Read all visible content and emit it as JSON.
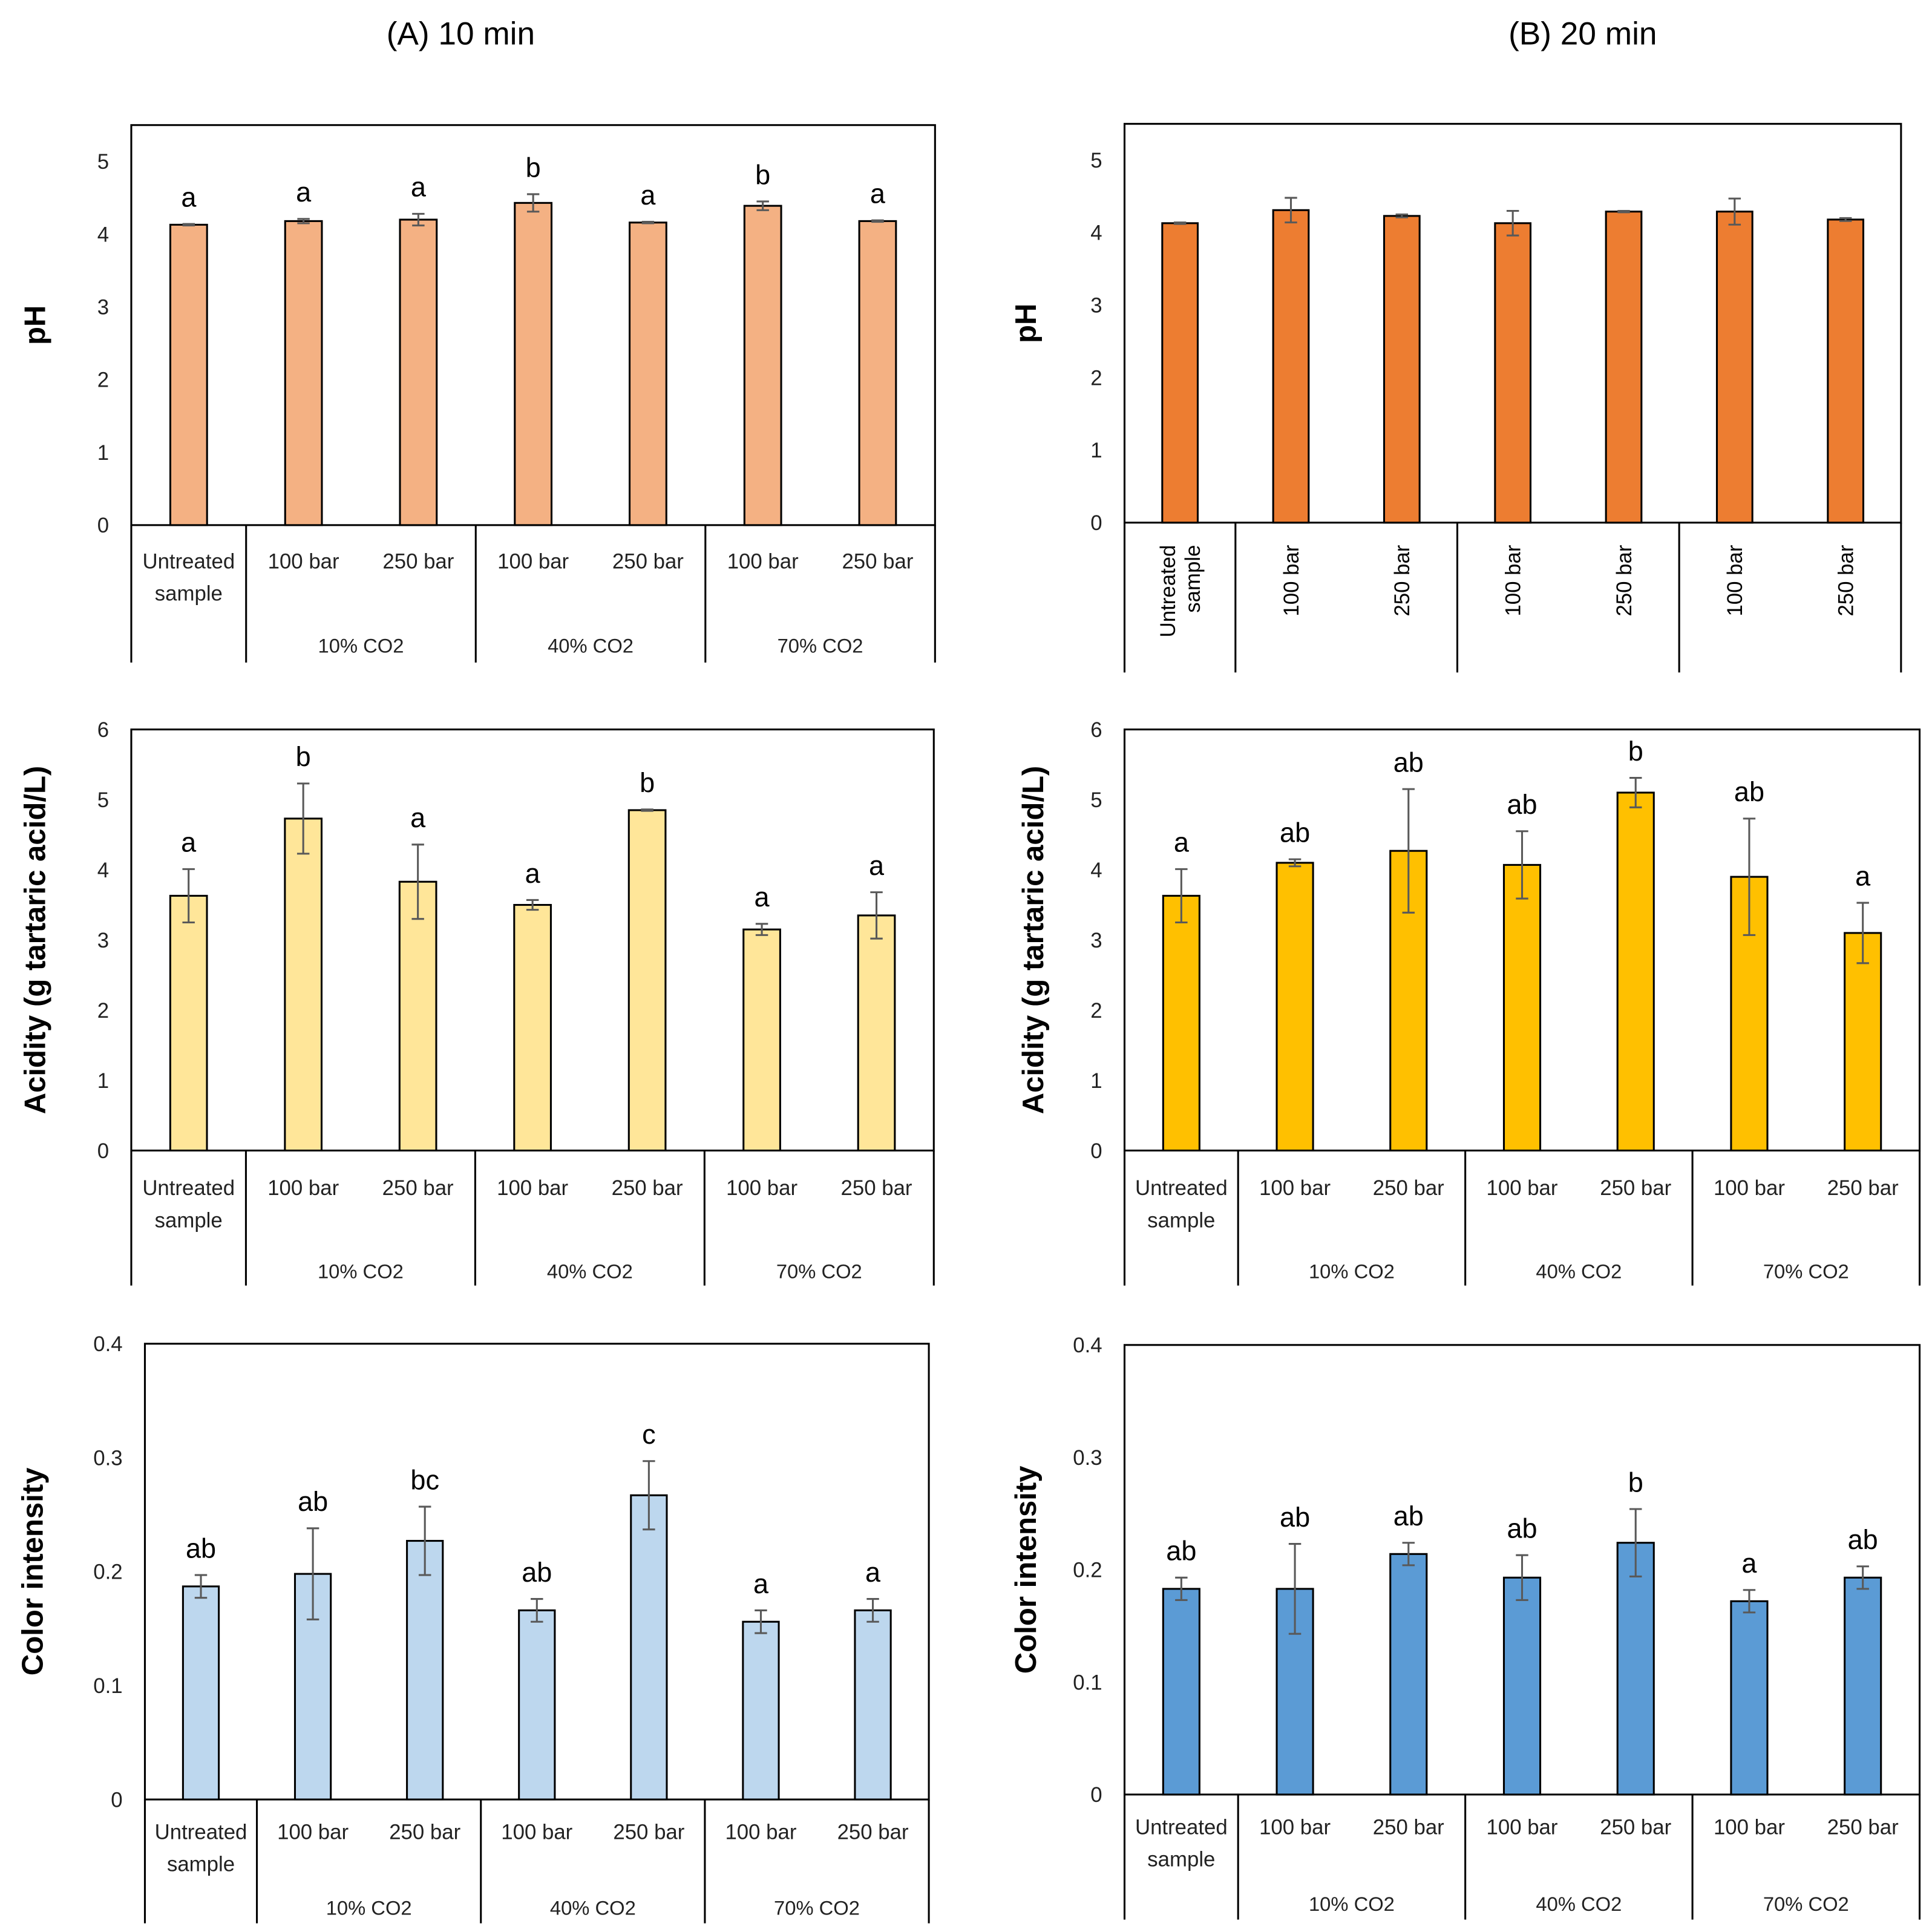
{
  "titles": [
    "(A) 10 min",
    "(B) 20 min"
  ],
  "colors": {
    "ph_a": "#F4B183",
    "ph_b": "#ED7D31",
    "acid_a": "#FFE699",
    "acid_b": "#FFC000",
    "color_a": "#BDD7EE",
    "color_b": "#5B9BD5",
    "error_bar": "#595959"
  },
  "chart_data": [
    {
      "id": "ph_a",
      "type": "bar",
      "panel": "(A) 10 min",
      "ylabel": "pH",
      "ylim": [
        0,
        5.5
      ],
      "yticks": [
        "0",
        "1",
        "2",
        "3",
        "4",
        "5"
      ],
      "ytick_values": [
        0,
        1,
        2,
        3,
        4,
        5
      ],
      "categories": [
        "Untreated sample",
        "100 bar",
        "250 bar",
        "100 bar",
        "250 bar",
        "100 bar",
        "250 bar"
      ],
      "groups": [
        "10% CO2",
        "40% CO2",
        "70% CO2"
      ],
      "values": [
        4.13,
        4.18,
        4.2,
        4.43,
        4.16,
        4.39,
        4.18
      ],
      "errors": [
        0.01,
        0.03,
        0.08,
        0.12,
        0.01,
        0.06,
        0.01
      ],
      "letters": [
        "a",
        "a",
        "a",
        "b",
        "a",
        "b",
        "a"
      ]
    },
    {
      "id": "ph_b",
      "type": "bar",
      "panel": "(B) 20 min",
      "ylabel": "pH",
      "ylim": [
        0,
        5.5
      ],
      "yticks": [
        "0",
        "1",
        "2",
        "3",
        "4",
        "5"
      ],
      "ytick_values": [
        0,
        1,
        2,
        3,
        4,
        5
      ],
      "categories": [
        "Untreated sample",
        "100 bar",
        "250 bar",
        "100 bar",
        "250 bar",
        "100 bar",
        "250 bar"
      ],
      "groups": [],
      "values": [
        4.13,
        4.31,
        4.23,
        4.13,
        4.29,
        4.29,
        4.18
      ],
      "errors": [
        0.01,
        0.17,
        0.02,
        0.17,
        0.01,
        0.18,
        0.02
      ],
      "letters": []
    },
    {
      "id": "acid_a",
      "type": "bar",
      "panel": "(A) 10 min",
      "ylabel": "Acidity (g tartaric acid/L)",
      "ylim": [
        0,
        6
      ],
      "yticks": [
        "0",
        "1",
        "2",
        "3",
        "4",
        "5",
        "6"
      ],
      "ytick_values": [
        0,
        1,
        2,
        3,
        4,
        5,
        6
      ],
      "categories": [
        "Untreated sample",
        "100 bar",
        "250 bar",
        "100 bar",
        "250 bar",
        "100 bar",
        "250 bar"
      ],
      "groups": [
        "10% CO2",
        "40% CO2",
        "70% CO2"
      ],
      "values": [
        3.63,
        4.73,
        3.83,
        3.5,
        4.85,
        3.15,
        3.35
      ],
      "errors": [
        0.38,
        0.5,
        0.53,
        0.07,
        0.01,
        0.08,
        0.33
      ],
      "letters": [
        "a",
        "b",
        "a",
        "a",
        "b",
        "a",
        "a"
      ]
    },
    {
      "id": "acid_b",
      "type": "bar",
      "panel": "(B) 20 min",
      "ylabel": "Acidity (g tartaric acid/L)",
      "ylim": [
        0,
        6
      ],
      "yticks": [
        "0",
        "1",
        "2",
        "3",
        "4",
        "5",
        "6"
      ],
      "ytick_values": [
        0,
        1,
        2,
        3,
        4,
        5,
        6
      ],
      "categories": [
        "Untreated sample",
        "100 bar",
        "250 bar",
        "100 bar",
        "250 bar",
        "100 bar",
        "250 bar"
      ],
      "groups": [
        "10% CO2",
        "40% CO2",
        "70% CO2"
      ],
      "values": [
        3.63,
        4.1,
        4.27,
        4.07,
        5.1,
        3.9,
        3.1
      ],
      "errors": [
        0.38,
        0.05,
        0.88,
        0.48,
        0.21,
        0.83,
        0.43
      ],
      "letters": [
        "a",
        "ab",
        "ab",
        "ab",
        "b",
        "ab",
        "a"
      ]
    },
    {
      "id": "color_a",
      "type": "bar",
      "panel": "(A) 10 min",
      "ylabel": "Color intensity",
      "ylim": [
        0,
        0.4
      ],
      "yticks": [
        "0",
        "0.1",
        "0.2",
        "0.3",
        "0.4"
      ],
      "ytick_values": [
        0,
        0.1,
        0.2,
        0.3,
        0.4
      ],
      "categories": [
        "Untreated sample",
        "100 bar",
        "250 bar",
        "100 bar",
        "250 bar",
        "100 bar",
        "250 bar"
      ],
      "groups": [
        "10% CO2",
        "40% CO2",
        "70% CO2"
      ],
      "values": [
        0.187,
        0.198,
        0.227,
        0.166,
        0.267,
        0.156,
        0.166
      ],
      "errors": [
        0.01,
        0.04,
        0.03,
        0.01,
        0.03,
        0.01,
        0.01
      ],
      "letters": [
        "ab",
        "ab",
        "bc",
        "ab",
        "c",
        "a",
        "a"
      ]
    },
    {
      "id": "color_b",
      "type": "bar",
      "panel": "(B) 20 min",
      "ylabel": "Color intensity",
      "ylim": [
        0,
        0.4
      ],
      "yticks": [
        "0",
        "0.1",
        "0.2",
        "0.3",
        "0.4"
      ],
      "ytick_values": [
        0,
        0.1,
        0.2,
        0.3,
        0.4
      ],
      "categories": [
        "Untreated sample",
        "100 bar",
        "250 bar",
        "100 bar",
        "250 bar",
        "100 bar",
        "250 bar"
      ],
      "groups": [
        "10% CO2",
        "40% CO2",
        "70% CO2"
      ],
      "values": [
        0.183,
        0.183,
        0.214,
        0.193,
        0.224,
        0.172,
        0.193
      ],
      "errors": [
        0.01,
        0.04,
        0.01,
        0.02,
        0.03,
        0.01,
        0.01
      ],
      "letters": [
        "ab",
        "ab",
        "ab",
        "ab",
        "b",
        "a",
        "ab"
      ]
    }
  ]
}
